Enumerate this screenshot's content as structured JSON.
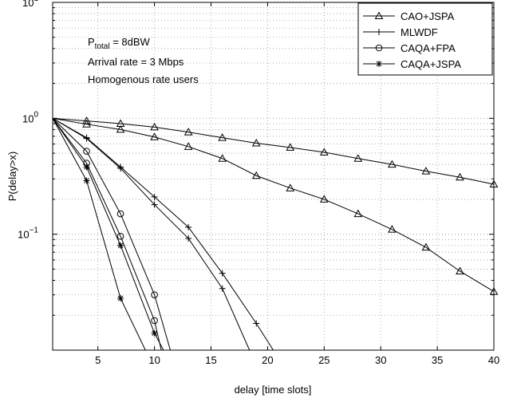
{
  "chart_data": {
    "type": "line",
    "title": "",
    "xlabel": "delay [time slots]",
    "ylabel": "P(delay>x)",
    "xlim": [
      1,
      40
    ],
    "ylim": [
      0.01,
      10
    ],
    "yscale": "log",
    "grid": true,
    "legend_position": "top-right",
    "x_ticks": [
      5,
      10,
      15,
      20,
      25,
      30,
      35,
      40
    ],
    "x_tick_labels": [
      "5",
      "10",
      "15",
      "20",
      "25",
      "30",
      "35",
      "40"
    ],
    "y_ticks": [
      0.1,
      1,
      10
    ],
    "y_tick_labels": [
      {
        "base": "10",
        "exp": "−1"
      },
      {
        "base": "10",
        "exp": "0"
      },
      {
        "base": "10",
        "exp": "1"
      }
    ],
    "annotations": {
      "ptotal_base": "P",
      "ptotal_sub": "total",
      "ptotal_value": " = 8dBW",
      "arrival": "Arrival rate = 3 Mbps",
      "users": "Homogenous rate users"
    },
    "series": [
      {
        "name": "CAO+JSPA",
        "marker": "triangle",
        "x": [
          1,
          4,
          7,
          10,
          13,
          16,
          19,
          22,
          25,
          28,
          31,
          34,
          37,
          40
        ],
        "y": [
          1.0,
          0.95,
          0.9,
          0.84,
          0.76,
          0.68,
          0.61,
          0.56,
          0.51,
          0.45,
          0.4,
          0.35,
          0.31,
          0.27
        ]
      },
      {
        "name": "CAO+JSPA",
        "marker": "triangle",
        "x": [
          1,
          4,
          7,
          10,
          13,
          16,
          19,
          22,
          25,
          28,
          31,
          34,
          37,
          40
        ],
        "y": [
          1.0,
          0.89,
          0.8,
          0.69,
          0.57,
          0.45,
          0.32,
          0.25,
          0.2,
          0.15,
          0.11,
          0.077,
          0.048,
          0.032
        ]
      },
      {
        "name": "MLWDF",
        "marker": "plus",
        "x": [
          1,
          4,
          7,
          10,
          13,
          16,
          19,
          20.5
        ],
        "y": [
          1.0,
          0.68,
          0.38,
          0.21,
          0.115,
          0.046,
          0.017,
          0.01
        ]
      },
      {
        "name": "MLWDF",
        "marker": "plus",
        "x": [
          1,
          4,
          7,
          10,
          13,
          16,
          18.4
        ],
        "y": [
          1.0,
          0.67,
          0.37,
          0.18,
          0.092,
          0.034,
          0.01
        ]
      },
      {
        "name": "CAQA+FPA",
        "marker": "circle",
        "x": [
          1,
          4,
          7,
          10,
          11.4
        ],
        "y": [
          1.0,
          0.52,
          0.15,
          0.03,
          0.01
        ]
      },
      {
        "name": "CAQA+FPA",
        "marker": "circle",
        "x": [
          1,
          4,
          7,
          10,
          10.6
        ],
        "y": [
          1.0,
          0.41,
          0.096,
          0.018,
          0.01
        ]
      },
      {
        "name": "CAQA+JSPA",
        "marker": "star",
        "x": [
          1,
          4,
          7,
          10,
          10.8
        ],
        "y": [
          1.0,
          0.38,
          0.08,
          0.014,
          0.01
        ]
      },
      {
        "name": "CAQA+JSPA",
        "marker": "star",
        "x": [
          1,
          4,
          7,
          9.2
        ],
        "y": [
          1.0,
          0.29,
          0.028,
          0.01
        ]
      }
    ],
    "legend": [
      {
        "label": "CAO+JSPA",
        "marker": "triangle"
      },
      {
        "label": "MLWDF",
        "marker": "plus"
      },
      {
        "label": "CAQA+FPA",
        "marker": "circle"
      },
      {
        "label": "CAQA+JSPA",
        "marker": "star"
      }
    ]
  }
}
